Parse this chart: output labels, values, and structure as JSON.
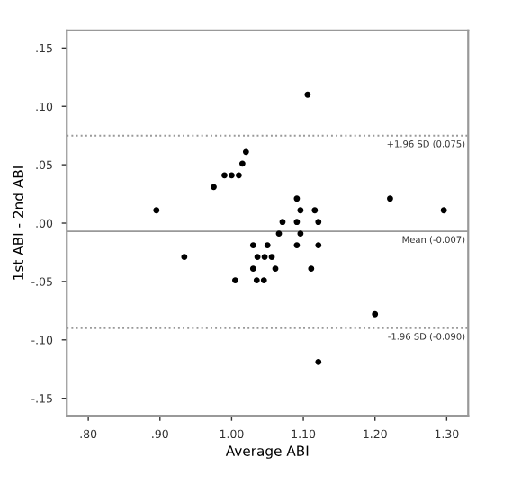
{
  "chart_data": {
    "type": "scatter",
    "xlabel": "Average ABI",
    "ylabel": "1st ABI - 2nd ABI",
    "x": [
      0.895,
      0.934,
      0.975,
      0.99,
      1.0,
      1.01,
      1.015,
      1.02,
      1.005,
      1.03,
      1.03,
      1.036,
      1.046,
      1.056,
      1.035,
      1.045,
      1.05,
      1.061,
      1.066,
      1.071,
      1.091,
      1.091,
      1.091,
      1.096,
      1.096,
      1.106,
      1.111,
      1.116,
      1.121,
      1.121,
      1.121,
      1.2,
      1.221,
      1.296
    ],
    "values": [
      0.011,
      -0.029,
      0.031,
      0.041,
      0.041,
      0.041,
      0.051,
      0.061,
      -0.049,
      -0.019,
      -0.039,
      -0.029,
      -0.029,
      -0.029,
      -0.049,
      -0.049,
      -0.019,
      -0.039,
      -0.009,
      0.001,
      0.021,
      0.001,
      -0.019,
      0.011,
      -0.009,
      0.11,
      -0.039,
      0.011,
      0.001,
      -0.019,
      -0.119,
      -0.078,
      0.021,
      0.011
    ],
    "color": "#000000",
    "marker": "circle",
    "xlim": [
      0.77,
      1.33
    ],
    "ylim": [
      -0.165,
      0.165
    ],
    "xticks": [
      {
        "value": 0.8,
        "label": ".80"
      },
      {
        "value": 0.9,
        "label": ".90"
      },
      {
        "value": 1.0,
        "label": "1.00"
      },
      {
        "value": 1.1,
        "label": "1.10"
      },
      {
        "value": 1.2,
        "label": "1.20"
      },
      {
        "value": 1.3,
        "label": "1.30"
      }
    ],
    "yticks": [
      {
        "value": -0.15,
        "label": "-.15"
      },
      {
        "value": -0.1,
        "label": "-.10"
      },
      {
        "value": -0.05,
        "label": "-.05"
      },
      {
        "value": 0,
        "label": ".00"
      },
      {
        "value": 0.05,
        "label": ".05"
      },
      {
        "value": 0.1,
        "label": ".10"
      },
      {
        "value": 0.15,
        "label": ".15"
      }
    ],
    "ref_lines": [
      {
        "axis": "y",
        "value": 0.075,
        "label": "+1.96 SD (0.075)",
        "color": "#999999",
        "line_style": "dotted"
      },
      {
        "axis": "y",
        "value": -0.007,
        "label": "Mean (-0.007)",
        "color": "#999999",
        "line_style": "solid"
      },
      {
        "axis": "y",
        "value": -0.09,
        "label": "-1.96 SD (-0.090)",
        "color": "#999999",
        "line_style": "dotted"
      }
    ],
    "grid": false,
    "legend": false
  }
}
